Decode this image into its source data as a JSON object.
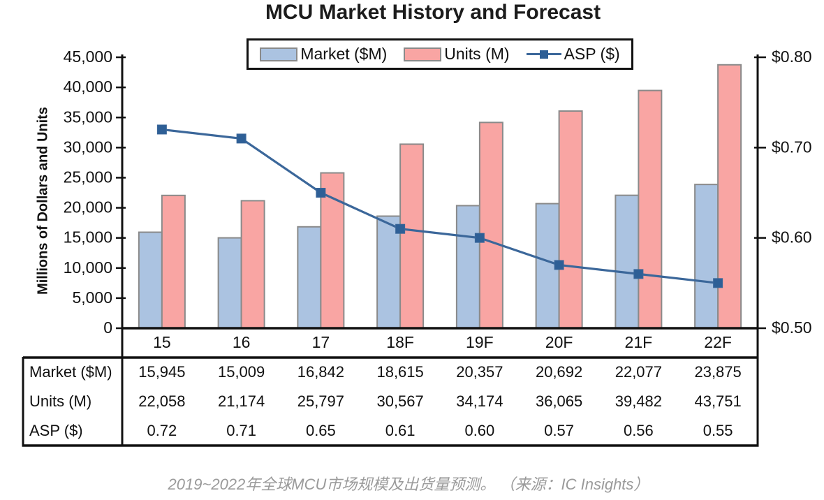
{
  "title": "MCU Market History and Forecast",
  "caption": "2019~2022年全球MCU市场规模及出货量预测。 （来源：IC Insights）",
  "legend": {
    "items": [
      {
        "label": "Market ($M)",
        "swatch": "market-bar-swatch"
      },
      {
        "label": "Units (M)",
        "swatch": "units-bar-swatch"
      },
      {
        "label": "ASP ($)",
        "swatch": "asp-line-swatch"
      }
    ]
  },
  "colors": {
    "market_bar": "#abc3e1",
    "units_bar": "#f9a5a3",
    "bar_border": "#8a8a8a",
    "asp_line": "#3b679a",
    "asp_marker": "#2e5f96",
    "axis": "#111111",
    "text": "#111111",
    "caption_text": "#9a9a9a"
  },
  "chart_data": {
    "type": "bar",
    "subtype": "grouped-bars-with-line-overlay",
    "title": "MCU Market History and Forecast",
    "categories": [
      "15",
      "16",
      "17",
      "18F",
      "19F",
      "20F",
      "21F",
      "22F"
    ],
    "series": [
      {
        "name": "Market ($M)",
        "type": "bar",
        "axis": "left",
        "values": [
          15945,
          15009,
          16842,
          18615,
          20357,
          20692,
          22077,
          23875
        ]
      },
      {
        "name": "Units (M)",
        "type": "bar",
        "axis": "left",
        "values": [
          22058,
          21174,
          25797,
          30567,
          34174,
          36065,
          39482,
          43751
        ]
      },
      {
        "name": "ASP ($)",
        "type": "line",
        "axis": "right",
        "values": [
          0.72,
          0.71,
          0.65,
          0.61,
          0.6,
          0.57,
          0.56,
          0.55
        ]
      }
    ],
    "left_axis": {
      "label": "Millions of Dollars and Units",
      "min": 0,
      "max": 45000,
      "step": 5000
    },
    "right_axis": {
      "min": 0.5,
      "max": 0.8,
      "step": 0.1,
      "prefix": "$"
    },
    "legend_position": "top-center",
    "grid": false
  },
  "table": {
    "row_headers": [
      "Market ($M)",
      "Units (M)",
      "ASP ($)"
    ],
    "rows": [
      [
        "15,945",
        "15,009",
        "16,842",
        "18,615",
        "20,357",
        "20,692",
        "22,077",
        "23,875"
      ],
      [
        "22,058",
        "21,174",
        "25,797",
        "30,567",
        "34,174",
        "36,065",
        "39,482",
        "43,751"
      ],
      [
        "0.72",
        "0.71",
        "0.65",
        "0.61",
        "0.60",
        "0.57",
        "0.56",
        "0.55"
      ]
    ]
  }
}
